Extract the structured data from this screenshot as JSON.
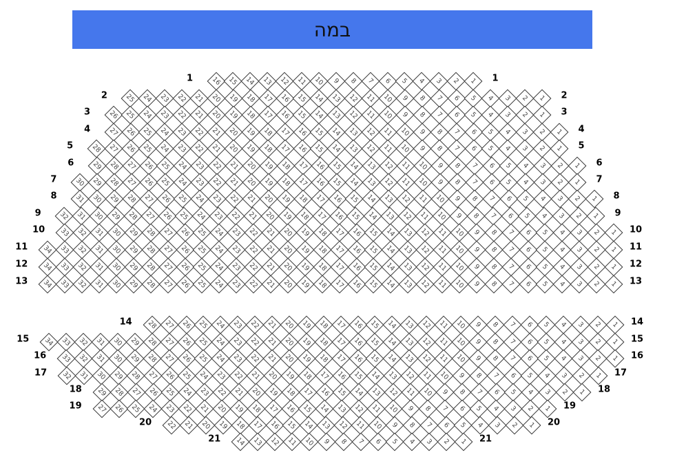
{
  "stage": {
    "label": "במה",
    "color": "#4577ec"
  },
  "rows": [
    {
      "label": "1",
      "seats": [
        16,
        15,
        14,
        13,
        12,
        11,
        10,
        9,
        8,
        7,
        6,
        5,
        4,
        3,
        2,
        1
      ]
    },
    {
      "label": "2",
      "seats": [
        25,
        24,
        23,
        22,
        21,
        20,
        19,
        18,
        17,
        16,
        15,
        14,
        13,
        12,
        11,
        10,
        9,
        8,
        7,
        6,
        5,
        4,
        3,
        2,
        1
      ]
    },
    {
      "label": "3",
      "seats": [
        26,
        25,
        24,
        23,
        22,
        21,
        20,
        19,
        18,
        17,
        16,
        15,
        14,
        13,
        12,
        11,
        10,
        9,
        8,
        7,
        6,
        5,
        4,
        3,
        2,
        1
      ]
    },
    {
      "label": "4",
      "seats": [
        27,
        26,
        25,
        24,
        23,
        22,
        21,
        20,
        19,
        18,
        17,
        16,
        15,
        14,
        13,
        12,
        11,
        10,
        9,
        8,
        7,
        6,
        5,
        4,
        3,
        2,
        1
      ]
    },
    {
      "label": "5",
      "seats": [
        28,
        27,
        26,
        25,
        24,
        23,
        22,
        21,
        20,
        19,
        18,
        17,
        16,
        15,
        14,
        13,
        12,
        11,
        10,
        9,
        8,
        7,
        6,
        5,
        4,
        3,
        2,
        1
      ]
    },
    {
      "label": "6",
      "seats": [
        29,
        28,
        27,
        26,
        25,
        24,
        23,
        22,
        21,
        20,
        19,
        18,
        17,
        16,
        15,
        14,
        13,
        12,
        11,
        10,
        9,
        8,
        7,
        6,
        5,
        4,
        3,
        2,
        1
      ]
    },
    {
      "label": "7",
      "seats": [
        30,
        29,
        28,
        27,
        26,
        25,
        24,
        23,
        22,
        21,
        20,
        19,
        18,
        17,
        16,
        15,
        14,
        13,
        12,
        11,
        10,
        9,
        8,
        7,
        6,
        5,
        4,
        3,
        2,
        1
      ]
    },
    {
      "label": "8",
      "seats": [
        31,
        30,
        29,
        28,
        27,
        26,
        25,
        24,
        23,
        22,
        21,
        20,
        19,
        18,
        17,
        16,
        15,
        14,
        13,
        12,
        11,
        10,
        9,
        8,
        7,
        6,
        5,
        4,
        3,
        2,
        1
      ]
    },
    {
      "label": "9",
      "seats": [
        32,
        31,
        30,
        29,
        28,
        27,
        26,
        25,
        24,
        23,
        22,
        21,
        20,
        19,
        18,
        17,
        16,
        15,
        14,
        13,
        12,
        11,
        10,
        9,
        8,
        7,
        6,
        5,
        4,
        3,
        2,
        1
      ]
    },
    {
      "label": "10",
      "seats": [
        33,
        32,
        31,
        30,
        29,
        28,
        27,
        26,
        25,
        24,
        23,
        22,
        21,
        20,
        19,
        18,
        17,
        16,
        15,
        14,
        13,
        12,
        11,
        10,
        9,
        8,
        7,
        6,
        5,
        4,
        3,
        2,
        1
      ]
    },
    {
      "label": "11",
      "seats": [
        34,
        33,
        32,
        31,
        30,
        29,
        28,
        27,
        26,
        25,
        24,
        23,
        22,
        21,
        20,
        19,
        18,
        17,
        16,
        15,
        14,
        13,
        12,
        11,
        10,
        9,
        8,
        7,
        6,
        5,
        4,
        3,
        2,
        1
      ]
    },
    {
      "label": "12",
      "seats": [
        34,
        33,
        32,
        31,
        30,
        29,
        28,
        27,
        26,
        25,
        24,
        23,
        22,
        21,
        20,
        19,
        18,
        17,
        16,
        15,
        14,
        13,
        12,
        11,
        10,
        9,
        8,
        7,
        6,
        5,
        4,
        3,
        2,
        1
      ]
    },
    {
      "label": "13",
      "seats": [
        34,
        33,
        32,
        31,
        30,
        29,
        28,
        27,
        26,
        25,
        24,
        23,
        22,
        21,
        20,
        19,
        18,
        17,
        16,
        15,
        14,
        13,
        12,
        11,
        10,
        9,
        8,
        7,
        6,
        5,
        4,
        3,
        2,
        1
      ]
    },
    {
      "label": "14",
      "seats": [
        28,
        27,
        26,
        25,
        24,
        23,
        22,
        21,
        20,
        19,
        18,
        17,
        16,
        15,
        14,
        13,
        12,
        11,
        10,
        9,
        8,
        7,
        6,
        5,
        4,
        3,
        2,
        1
      ]
    },
    {
      "label": "15",
      "seats": [
        34,
        33,
        32,
        31,
        30,
        29,
        28,
        27,
        26,
        25,
        24,
        23,
        22,
        21,
        20,
        19,
        18,
        17,
        16,
        15,
        14,
        13,
        12,
        11,
        10,
        9,
        8,
        7,
        6,
        5,
        4,
        3,
        2,
        1
      ]
    },
    {
      "label": "16",
      "seats": [
        33,
        32,
        31,
        30,
        29,
        28,
        27,
        26,
        25,
        24,
        23,
        22,
        21,
        20,
        19,
        18,
        17,
        16,
        15,
        14,
        13,
        12,
        11,
        10,
        9,
        8,
        7,
        6,
        5,
        4,
        3,
        2,
        1
      ]
    },
    {
      "label": "17",
      "seats": [
        32,
        31,
        30,
        29,
        28,
        27,
        26,
        25,
        24,
        23,
        22,
        21,
        20,
        19,
        18,
        17,
        16,
        15,
        14,
        13,
        12,
        11,
        10,
        9,
        8,
        7,
        6,
        5,
        4,
        3,
        2,
        1
      ]
    },
    {
      "label": "18",
      "seats": [
        29,
        28,
        27,
        26,
        25,
        24,
        23,
        22,
        21,
        20,
        19,
        18,
        17,
        16,
        15,
        14,
        13,
        12,
        11,
        10,
        9,
        8,
        7,
        6,
        5,
        4,
        3,
        2,
        1
      ]
    },
    {
      "label": "19",
      "seats": [
        27,
        26,
        25,
        24,
        23,
        22,
        21,
        20,
        19,
        18,
        17,
        16,
        15,
        14,
        13,
        12,
        11,
        10,
        9,
        8,
        7,
        6,
        5,
        4,
        3,
        2,
        1
      ]
    },
    {
      "label": "20",
      "seats": [
        22,
        21,
        20,
        19,
        18,
        17,
        16,
        15,
        14,
        13,
        12,
        11,
        10,
        9,
        8,
        7,
        6,
        5,
        4,
        3,
        2,
        1
      ]
    },
    {
      "label": "21",
      "seats": [
        14,
        13,
        12,
        11,
        10,
        9,
        8,
        7,
        6,
        5,
        4,
        3,
        2,
        1
      ]
    }
  ]
}
